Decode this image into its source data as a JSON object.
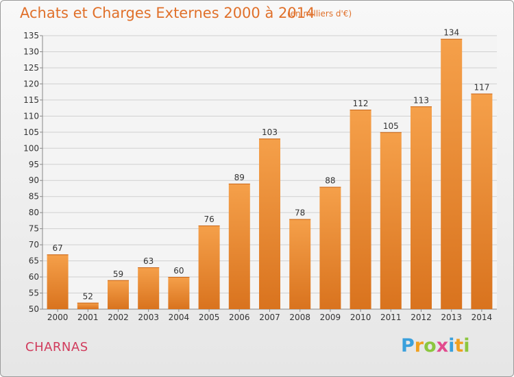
{
  "title": "Achats et Charges Externes 2000 à 2014",
  "subtitle": "(en milliers d'€)",
  "city": "CHARNAS",
  "logo": {
    "letters": [
      "P",
      "r",
      "o",
      "x",
      "i",
      "t",
      "i"
    ],
    "colors": [
      "#3aa0dc",
      "#f0a020",
      "#8cc63f",
      "#e24b8e",
      "#3aa0dc",
      "#f0a020",
      "#8cc63f"
    ]
  },
  "colors": {
    "bar_top": "#f5a04a",
    "bar_bottom": "#d9731e",
    "title": "#e0702a",
    "city": "#d13b5c"
  },
  "chart_data": {
    "type": "bar",
    "categories": [
      "2000",
      "2001",
      "2002",
      "2003",
      "2004",
      "2005",
      "2006",
      "2007",
      "2008",
      "2009",
      "2010",
      "2011",
      "2012",
      "2013",
      "2014"
    ],
    "values": [
      67,
      52,
      59,
      63,
      60,
      76,
      89,
      103,
      78,
      88,
      112,
      105,
      113,
      134,
      117
    ],
    "ylim": [
      50,
      135
    ],
    "yticks": [
      50,
      55,
      60,
      65,
      70,
      75,
      80,
      85,
      90,
      95,
      100,
      105,
      110,
      115,
      120,
      125,
      130,
      135
    ],
    "grid": true
  }
}
